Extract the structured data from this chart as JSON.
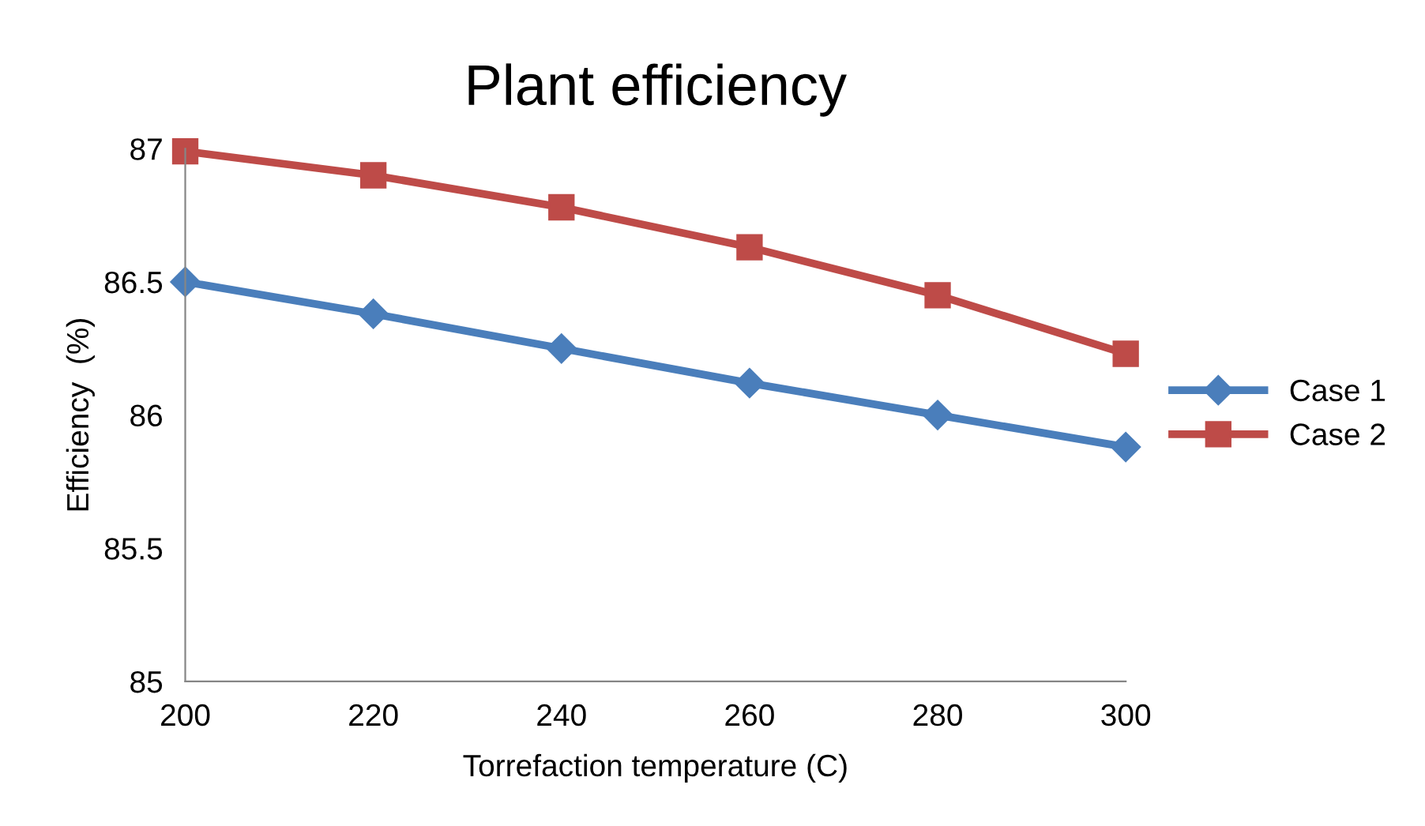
{
  "chart_data": {
    "type": "line",
    "title": "Plant efficiency",
    "xlabel": "Torrefaction temperature (C)",
    "ylabel": "Efficiency  (%)",
    "x": [
      200,
      220,
      240,
      260,
      280,
      300
    ],
    "series": [
      {
        "name": "Case 1",
        "color": "#4a7ebb",
        "marker": "diamond",
        "values": [
          86.5,
          86.38,
          86.25,
          86.12,
          86.0,
          85.88
        ]
      },
      {
        "name": "Case 2",
        "color": "#be4b48",
        "marker": "square",
        "values": [
          86.99,
          86.9,
          86.78,
          86.63,
          86.45,
          86.23
        ]
      }
    ],
    "xlim": [
      200,
      300
    ],
    "xticks": [
      200,
      220,
      240,
      260,
      280,
      300
    ],
    "ylim": [
      85,
      87
    ],
    "yticks": [
      85,
      85.5,
      86,
      86.5,
      87
    ],
    "grid": false,
    "legend": "right",
    "line_style": "solid"
  }
}
